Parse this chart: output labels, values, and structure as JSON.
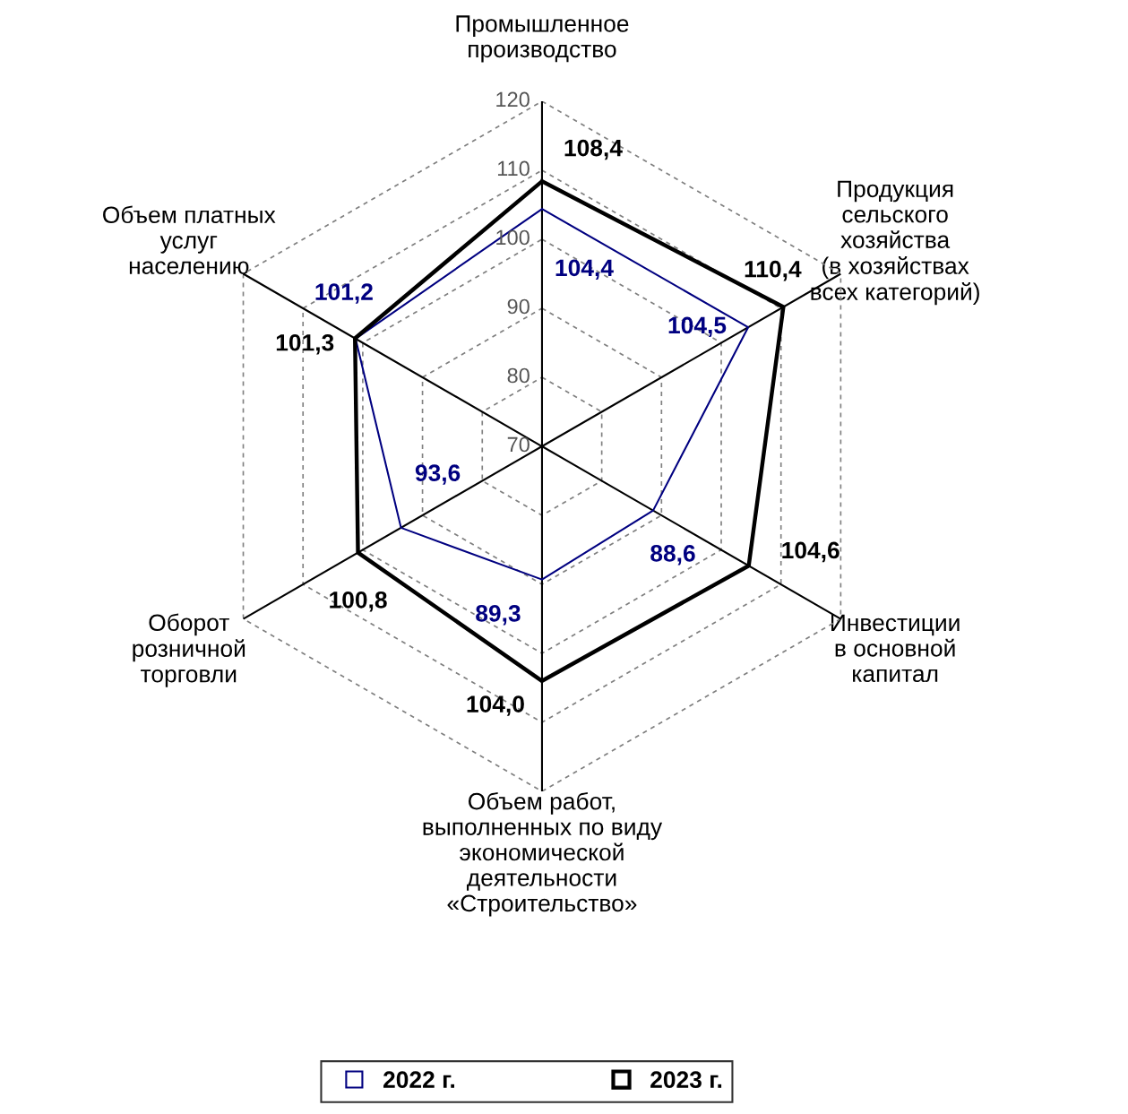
{
  "chart_data": {
    "type": "radar",
    "categories": [
      "Промышленное\nпроизводство",
      "Продукция\nсельского\nхозяйства\n(в хозяйствах\nвсех категорий)",
      "Инвестиции\nв основной\nкапитал",
      "Объем работ,\nвыполненных по виду\nэкономической\nдеятельности\n«Строительство»",
      "Оборот\nрозничной\nторговли",
      "Объем платных\nуслуг\nнаселению"
    ],
    "series": [
      {
        "name": "2022 г.",
        "color": "#000080",
        "values": [
          104.4,
          104.5,
          88.6,
          89.3,
          93.6,
          101.2
        ],
        "value_labels": [
          "104,4",
          "104,5",
          "88,6",
          "89,3",
          "93,6",
          "101,2"
        ]
      },
      {
        "name": "2023 г.",
        "color": "#000000",
        "values": [
          108.4,
          110.4,
          104.6,
          104.0,
          100.8,
          101.3
        ],
        "value_labels": [
          "108,4",
          "110,4",
          "104,6",
          "104,0",
          "100,8",
          "101,3"
        ]
      }
    ],
    "ylim": [
      70,
      120
    ],
    "yticks": [
      70,
      80,
      90,
      100,
      110,
      120
    ],
    "grid": true,
    "legend": "bottom"
  }
}
